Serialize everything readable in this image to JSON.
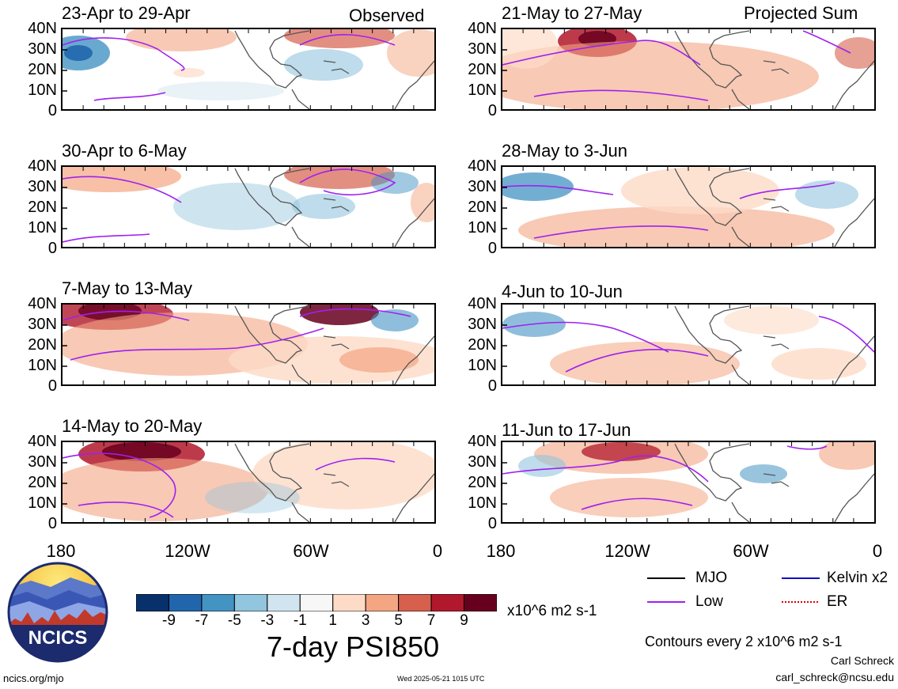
{
  "corner_labels": {
    "left": "Observed",
    "right": "Projected Sum"
  },
  "lat_ticks": [
    "40N",
    "30N",
    "20N",
    "10N",
    "0"
  ],
  "lon_ticks": [
    "180",
    "120W",
    "60W",
    "0"
  ],
  "panels": [
    {
      "title": "23-Apr to 29-Apr",
      "group": "observed"
    },
    {
      "title": "30-Apr to 6-May",
      "group": "observed"
    },
    {
      "title": "7-May to 13-May",
      "group": "observed"
    },
    {
      "title": "14-May to 20-May",
      "group": "observed"
    },
    {
      "title": "21-May to 27-May",
      "group": "projected"
    },
    {
      "title": "28-May to 3-Jun",
      "group": "projected"
    },
    {
      "title": "4-Jun to 10-Jun",
      "group": "projected"
    },
    {
      "title": "11-Jun to 17-Jun",
      "group": "projected"
    }
  ],
  "colorbar": {
    "labels": [
      "-9",
      "-7",
      "-5",
      "-3",
      "-1",
      "1",
      "3",
      "5",
      "7",
      "9"
    ],
    "colors": [
      "#08306b",
      "#2166ac",
      "#4393c3",
      "#92c5de",
      "#d1e5f0",
      "#f7f7f7",
      "#fddbc7",
      "#f4a582",
      "#d6604d",
      "#b2182b",
      "#67001f"
    ],
    "units": "x10^6 m2 s-1"
  },
  "main_title": "7-day PSI850",
  "legend": [
    {
      "label": "MJO",
      "color": "#000000",
      "style": "solid"
    },
    {
      "label": "Kelvin x2",
      "color": "#1010c0",
      "style": "solid"
    },
    {
      "label": "Low",
      "color": "#a020f0",
      "style": "solid"
    },
    {
      "label": "ER",
      "color": "#e00000",
      "style": "dotted"
    }
  ],
  "contour_note": "Contours every 2 x10^6 m2 s-1",
  "logo_text": "NCICS",
  "footer": {
    "left": "ncics.org/mjo",
    "center": "Wed 2025-05-21 1015 UTC",
    "author": "Carl Schreck",
    "email": "carl_schreck@ncsu.edu"
  },
  "colors": {
    "positive": "#d6604d",
    "negative": "#4393c3",
    "contour_low": "#a020f0",
    "land": "#555555"
  }
}
